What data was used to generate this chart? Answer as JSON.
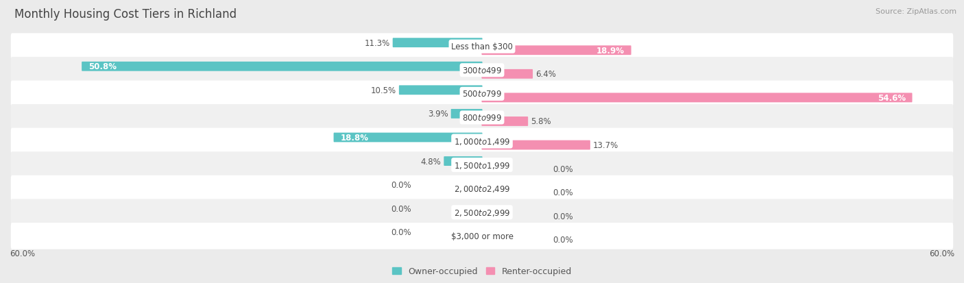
{
  "title": "Monthly Housing Cost Tiers in Richland",
  "source": "Source: ZipAtlas.com",
  "categories": [
    "Less than $300",
    "$300 to $499",
    "$500 to $799",
    "$800 to $999",
    "$1,000 to $1,499",
    "$1,500 to $1,999",
    "$2,000 to $2,499",
    "$2,500 to $2,999",
    "$3,000 or more"
  ],
  "owner_values": [
    11.3,
    50.8,
    10.5,
    3.9,
    18.8,
    4.8,
    0.0,
    0.0,
    0.0
  ],
  "renter_values": [
    18.9,
    6.4,
    54.6,
    5.8,
    13.7,
    0.0,
    0.0,
    0.0,
    0.0
  ],
  "owner_color": "#5bc4c4",
  "renter_color": "#f48fb1",
  "axis_max": 60.0,
  "background_color": "#ebebeb",
  "row_colors": [
    "#ffffff",
    "#f0f0f0"
  ],
  "title_fontsize": 12,
  "bar_label_fontsize": 8.5,
  "cat_label_fontsize": 8.5,
  "source_fontsize": 8,
  "legend_fontsize": 9,
  "axis_label_fontsize": 8.5
}
